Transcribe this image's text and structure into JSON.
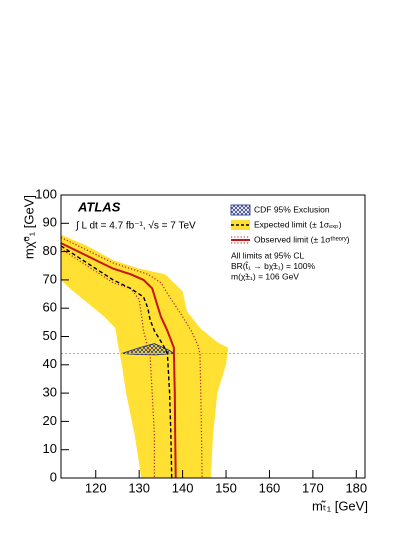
{
  "chart_data": {
    "type": "line",
    "title": "ATLAS",
    "subtitle": "∫ L dt = 4.7 fb⁻¹, √s = 7 TeV",
    "x_label": "mₜ̃₁ [GeV]",
    "y_label": "mχ̃⁰₁ [GeV]",
    "xlim": [
      112,
      182
    ],
    "xticks": [
      120,
      130,
      140,
      150,
      160,
      170,
      180
    ],
    "ylim": [
      0,
      100
    ],
    "yticks": [
      0,
      10,
      20,
      30,
      40,
      50,
      60,
      70,
      80,
      90,
      100
    ],
    "reference_line": 44,
    "annotations": [
      "All limits at 95% CL",
      "BR(t̃₁ → bχ̃±₁) = 100%",
      "m(χ̃±₁) = 106 GeV"
    ],
    "series": [
      {
        "kind": "band",
        "color": "#ffe033",
        "x": [
          112,
          118,
          124,
          130,
          136,
          140,
          141,
          144,
          148,
          150.5,
          150,
          148,
          147,
          146.5,
          130.5,
          129,
          127,
          126,
          125,
          124.5,
          122,
          118,
          114,
          112
        ],
        "values": [
          86,
          82,
          77,
          74,
          72,
          66,
          59,
          53,
          48,
          46,
          40,
          30,
          15,
          0,
          0,
          15,
          30,
          40,
          48,
          53,
          57,
          62,
          67,
          70
        ]
      },
      {
        "kind": "hatch",
        "name": "CDF 95% Exclusion",
        "color": "#1a2a80",
        "x": [
          126,
          130,
          133.5,
          137,
          138,
          134,
          130,
          126
        ],
        "values": [
          44,
          46,
          47.5,
          45,
          44,
          43.5,
          43.6,
          44
        ]
      },
      {
        "kind": "dotted",
        "color": "#b22222",
        "x": [
          112,
          116,
          120,
          124,
          128,
          132,
          135,
          137,
          140,
          142,
          143.5,
          144,
          144.3,
          144.5
        ],
        "values": [
          85,
          82,
          79,
          76,
          74,
          72,
          69,
          64,
          57,
          52,
          47,
          44,
          20,
          0
        ]
      },
      {
        "kind": "dotted",
        "color": "#b22222",
        "x": [
          112,
          116,
          120,
          124,
          128,
          130,
          130.5,
          131,
          132,
          132.5,
          133,
          133.5,
          133.5
        ],
        "values": [
          81,
          77,
          73,
          69,
          67,
          63,
          58,
          52,
          46,
          44,
          30,
          15,
          0
        ]
      },
      {
        "kind": "expected",
        "name": "Expected limit (± 1σₑₓₚ)",
        "color": "#000000",
        "x": [
          112,
          116,
          120,
          124,
          128,
          131,
          132,
          132.5,
          133.5,
          135.5,
          136.5,
          137,
          137.3,
          137.5
        ],
        "values": [
          82,
          78,
          74,
          70,
          67,
          64,
          60,
          56,
          52,
          47,
          44,
          30,
          15,
          0
        ]
      },
      {
        "kind": "observed",
        "name": "Observed limit (± 1σᵗʰᵉᵒʳʸ)",
        "color": "#c81414",
        "x": [
          112,
          116,
          120,
          124,
          128,
          131,
          133,
          134,
          135,
          136.5,
          138,
          138,
          138.2,
          138.3,
          138.4
        ],
        "values": [
          83,
          80,
          77,
          74,
          72,
          70,
          67,
          62,
          57,
          52,
          46,
          44,
          30,
          15,
          0
        ]
      }
    ]
  }
}
